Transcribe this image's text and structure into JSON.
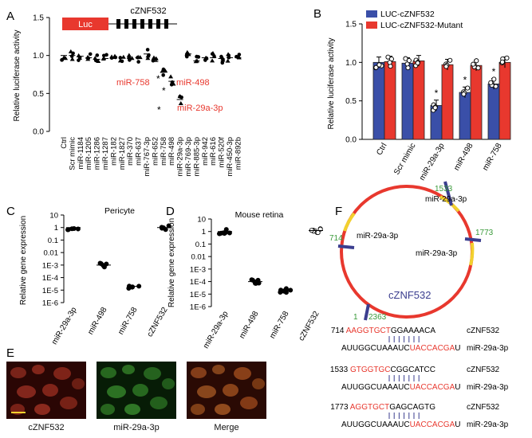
{
  "panels": {
    "A": {
      "letter": "A",
      "ylabel": "Relative luciferase activity",
      "yticks": [
        "0.0",
        "0.5",
        "1.0",
        "1.5"
      ],
      "construct_luc": "Luc",
      "construct_gene": "cZNF532",
      "callouts": [
        "miR-758",
        "miR-498",
        "miR-29a-3p"
      ],
      "star": "*",
      "callout_color": "#e8382e"
    },
    "B": {
      "letter": "B",
      "ylabel": "Relative luciferase activity",
      "yticks": [
        "0.0",
        "0.5",
        "1.0",
        "1.5"
      ],
      "legend": [
        "LUC-cZNF532",
        "LUC-cZNF532-Mutant"
      ],
      "colors": [
        "#3a4fa8",
        "#e8382e"
      ],
      "star": "*"
    },
    "C": {
      "letter": "C",
      "subtitle": "Pericyte",
      "ylabel": "Relative gene expression",
      "yticks": [
        "1E-6",
        "1E-5",
        "1E-4",
        "1E-3",
        "0.01",
        "0.1",
        "1",
        "10"
      ]
    },
    "D": {
      "letter": "D",
      "subtitle": "Mouse retina",
      "ylabel": "Relative gene expression",
      "yticks": [
        "1E-6",
        "1E-5",
        "1E-4",
        "1E-3",
        "0.01",
        "0.1",
        "1",
        "10"
      ]
    },
    "E": {
      "letter": "E",
      "labels": [
        "cZNF532",
        "miR-29a-3p",
        "Merge"
      ]
    },
    "F": {
      "letter": "F",
      "circle_label": "cZNF532",
      "positions": [
        "1533",
        "714",
        "1773",
        "1",
        "2363"
      ],
      "site_label": "miR-29a-3p",
      "circle_color": "#e8382e",
      "site_color": "#f2d12e",
      "bar_color": "#3b3e8f",
      "pos_color": "#3a9a3a",
      "alignments": [
        {
          "pos": "714",
          "top_red": "AAGGTGCT",
          "top_rest": "GGAAAACA",
          "top_name": "cZNF532",
          "bot_black": "AUUGGCUAAAUC",
          "bot_red": "UACCACGA",
          "bot_end": "U",
          "bot_name": "miR-29a-3p"
        },
        {
          "pos": "1533",
          "top_red": "GTGGTGC",
          "top_rest": "CGGCATCC",
          "top_name": "cZNF532",
          "bot_black": "AUUGGCUAAAUC",
          "bot_red": "UACCACGA",
          "bot_end": "U",
          "bot_name": "miR-29a-3p"
        },
        {
          "pos": "1773",
          "top_red": "AGGTGCT",
          "top_rest": "GAGCAGTG",
          "top_name": "cZNF532",
          "bot_black": "AUUGGCUAAAUC",
          "bot_red": "UACCACGA",
          "bot_end": "U",
          "bot_name": "miR-29a-3p"
        }
      ]
    }
  },
  "chart_data": [
    {
      "type": "scatter",
      "panel": "A",
      "ylabel": "Relative luciferase activity",
      "ylim": [
        0,
        1.5
      ],
      "categories": [
        "Ctrl",
        "Scr mimic",
        "miR-1184",
        "miR-1205",
        "miR-1286",
        "miR-1287",
        "miR-182",
        "miR-1827",
        "miR-370",
        "miR-637",
        "miR-767-3p",
        "miR-652",
        "miR-758",
        "miR-498",
        "miR-29a-3p",
        "miR-769-3p",
        "miR-885-3p",
        "miR-942",
        "miR-616",
        "miR-520f",
        "miR-450-3p",
        "miR-892b"
      ],
      "values": [
        1.0,
        1.0,
        0.99,
        0.97,
        0.95,
        0.96,
        0.96,
        0.97,
        0.96,
        0.97,
        1.02,
        0.92,
        0.78,
        0.66,
        0.42,
        1.02,
        0.93,
        0.97,
        0.97,
        0.96,
        0.97,
        0.97
      ]
    },
    {
      "type": "bar",
      "panel": "B",
      "ylabel": "Relative luciferase activity",
      "ylim": [
        0,
        1.5
      ],
      "categories": [
        "Ctrl",
        "Scr mimic",
        "miR-29a-3p",
        "miR-498",
        "miR-758"
      ],
      "series": [
        {
          "name": "LUC-cZNF532",
          "values": [
            1.0,
            0.99,
            0.44,
            0.61,
            0.72
          ]
        },
        {
          "name": "LUC-cZNF532-Mutant",
          "values": [
            1.01,
            1.02,
            0.97,
            0.96,
            1.0
          ]
        }
      ]
    },
    {
      "type": "scatter",
      "panel": "C",
      "subtitle": "Pericyte",
      "ylabel": "Relative gene expression",
      "yscale": "log",
      "ylim": [
        1e-06,
        10
      ],
      "categories": [
        "miR-29a-3p",
        "miR-498",
        "miR-758",
        "cZNF532"
      ],
      "values": [
        1.0,
        0.001,
        2e-05,
        1.0
      ]
    },
    {
      "type": "scatter",
      "panel": "D",
      "subtitle": "Mouse retina",
      "ylabel": "Relative gene expression",
      "yscale": "log",
      "ylim": [
        1e-06,
        10
      ],
      "categories": [
        "miR-29a-3p",
        "miR-498",
        "miR-758",
        "cZNF532"
      ],
      "values": [
        1.0,
        0.0001,
        2e-05,
        1.2
      ]
    }
  ]
}
